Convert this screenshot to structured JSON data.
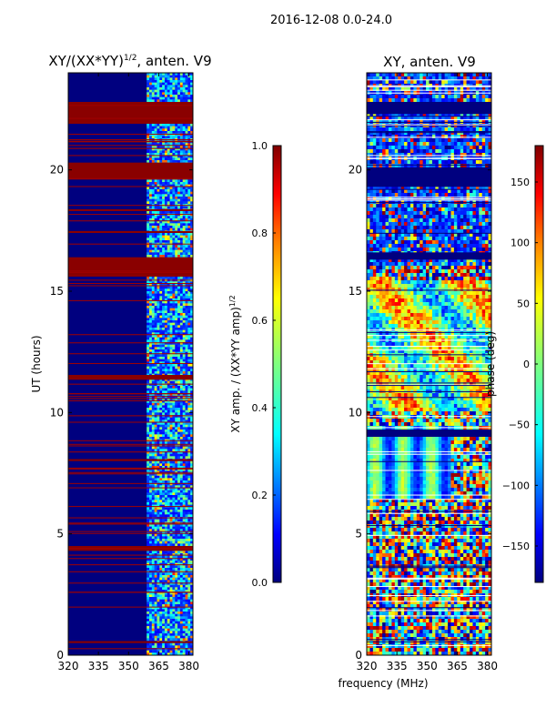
{
  "suptitle": "2016-12-08 0.0-24.0",
  "xlabel": "frequency (MHz)",
  "colors": {
    "jet": [
      "#00007f",
      "#0000ff",
      "#007fff",
      "#00ffff",
      "#7fff7f",
      "#ffff00",
      "#ff7f00",
      "#ff0000",
      "#7f0000"
    ]
  },
  "chart_data": [
    {
      "type": "heatmap",
      "title": "XY/(XX*YY)",
      "title_sup": "1/2",
      "title_suffix": ", anten. V9",
      "xlabel": "",
      "ylabel": "UT (hours)",
      "xlim": [
        320,
        382
      ],
      "ylim": [
        0,
        24
      ],
      "xticks": [
        "320",
        "335",
        "350",
        "365",
        "380"
      ],
      "xtick_values": [
        320,
        335,
        350,
        365,
        380
      ],
      "yticks": [
        "0",
        "5",
        "10",
        "15",
        "20"
      ],
      "ytick_values": [
        0,
        5,
        10,
        15,
        20
      ],
      "colorbar": {
        "label": "XY amp. / (XX*YY amp)",
        "label_sup": "1/2",
        "range": [
          0.0,
          1.0
        ],
        "ticks": [
          "0.0",
          "0.2",
          "0.4",
          "0.6",
          "0.8",
          "1.0"
        ],
        "tick_values": [
          0.0,
          0.2,
          0.4,
          0.6,
          0.8,
          1.0
        ]
      },
      "saturated_bands_hours": [
        [
          15.6,
          16.4
        ],
        [
          19.6,
          20.3
        ],
        [
          21.9,
          22.8
        ],
        [
          11.35,
          11.55
        ],
        [
          4.3,
          4.5
        ],
        [
          0.5,
          0.58
        ],
        [
          17.4,
          17.48
        ],
        [
          18.3,
          18.38
        ],
        [
          8.0,
          8.08
        ]
      ],
      "active_band_mhz": [
        359,
        382
      ]
    },
    {
      "type": "heatmap",
      "title": "XY, anten. V9",
      "xlabel": "",
      "ylabel": "",
      "xlim": [
        320,
        382
      ],
      "ylim": [
        0,
        24
      ],
      "xticks": [
        "320",
        "335",
        "350",
        "365",
        "380"
      ],
      "xtick_values": [
        320,
        335,
        350,
        365,
        380
      ],
      "yticks": [
        "0",
        "5",
        "10",
        "15",
        "20"
      ],
      "ytick_values": [
        0,
        5,
        10,
        15,
        20
      ],
      "colorbar": {
        "label": "phase (deg)",
        "range": [
          -180,
          180
        ],
        "ticks": [
          "−150",
          "−100",
          "−50",
          "0",
          "50",
          "100",
          "150"
        ],
        "tick_values": [
          -150,
          -100,
          -50,
          0,
          50,
          100,
          150
        ]
      },
      "striped_region_hours": [
        6.5,
        9.5
      ]
    }
  ]
}
